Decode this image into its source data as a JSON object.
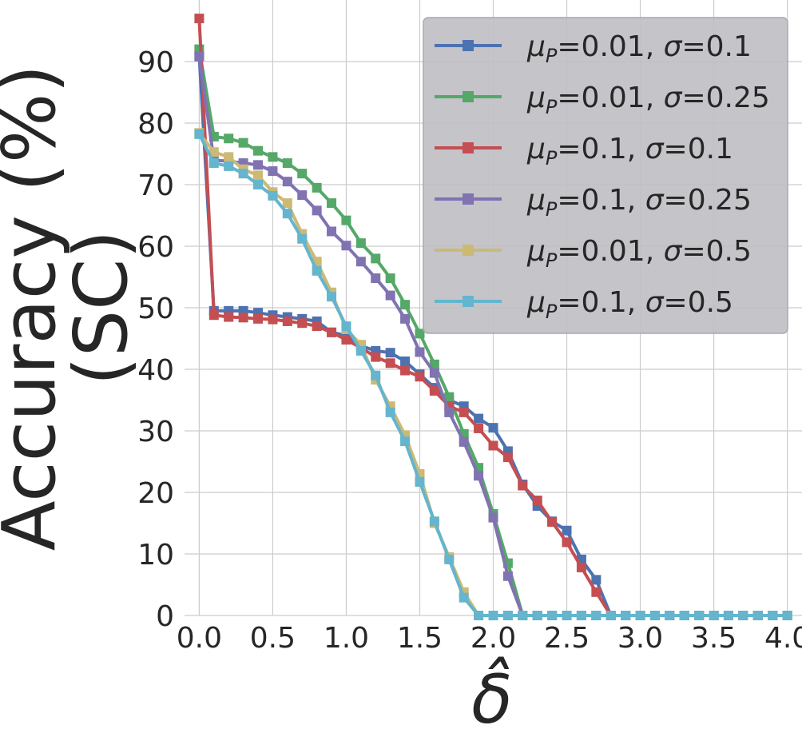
{
  "chart_data": {
    "type": "line",
    "title": "",
    "xlabel": "δ̂",
    "ylabel_lines": [
      "Accuracy (%)",
      "(SC)"
    ],
    "xlim": [
      -0.1,
      4.1
    ],
    "ylim": [
      0,
      100
    ],
    "x_ticks": [
      "0.0",
      "0.5",
      "1.0",
      "1.5",
      "2.0",
      "2.5",
      "3.0",
      "3.5",
      "4.0"
    ],
    "y_ticks": [
      "0",
      "10",
      "20",
      "30",
      "40",
      "50",
      "60",
      "70",
      "80",
      "90"
    ],
    "grid": true,
    "legend_position": "upper-right",
    "x": [
      0.0,
      0.1,
      0.2,
      0.3,
      0.4,
      0.5,
      0.6,
      0.7,
      0.8,
      0.9,
      1.0,
      1.1,
      1.2,
      1.3,
      1.4,
      1.5,
      1.6,
      1.7,
      1.8,
      1.9,
      2.0,
      2.1,
      2.2,
      2.3,
      2.4,
      2.5,
      2.6,
      2.7,
      2.8,
      2.9,
      3.0,
      3.1,
      3.2,
      3.3,
      3.4,
      3.5,
      3.6,
      3.7,
      3.8,
      3.9,
      4.0
    ],
    "series": [
      {
        "legend": {
          "mu": "=0.01, ",
          "sigma": "=0.1"
        },
        "color": "#4c72b0",
        "values": [
          91,
          49.5,
          49.5,
          49.5,
          49.2,
          48.8,
          48.5,
          48.2,
          47.8,
          46,
          45.5,
          43.8,
          43,
          42.7,
          41.3,
          39.2,
          37,
          35,
          34,
          32,
          30.5,
          26.7,
          21.3,
          17.8,
          15.3,
          13.8,
          9.1,
          5.8,
          0,
          0,
          0,
          0,
          0,
          0,
          0,
          0,
          0,
          0,
          0,
          0,
          0
        ]
      },
      {
        "legend": {
          "mu": "=0.01, ",
          "sigma": "=0.25"
        },
        "color": "#55a868",
        "values": [
          92,
          77.8,
          77.5,
          76.8,
          75.5,
          74.5,
          73.5,
          71.8,
          69.5,
          67,
          64.2,
          60.5,
          58,
          54.8,
          50.5,
          45.8,
          40.8,
          35.5,
          29.5,
          24,
          16.5,
          8.5,
          0,
          0,
          0,
          0,
          0,
          0,
          0,
          0,
          0,
          0,
          0,
          0,
          0,
          0,
          0,
          0,
          0,
          0,
          0
        ]
      },
      {
        "legend": {
          "mu": "=0.1, ",
          "sigma": "=0.1"
        },
        "color": "#c44e52",
        "values": [
          97,
          48.8,
          48.5,
          48.4,
          48.2,
          48.1,
          47.8,
          47.5,
          47,
          46,
          44.8,
          43.5,
          42,
          41,
          39.8,
          38.8,
          36.5,
          34,
          33,
          30.4,
          27.6,
          25.7,
          21.1,
          18.7,
          15.2,
          11.9,
          7.8,
          3.8,
          0,
          0,
          0,
          0,
          0,
          0,
          0,
          0,
          0,
          0,
          0,
          0,
          0
        ]
      },
      {
        "legend": {
          "mu": "=0.1, ",
          "sigma": "=0.25"
        },
        "color": "#8172b2",
        "values": [
          90.8,
          74,
          73.8,
          73.5,
          73.2,
          72.2,
          70.5,
          68.3,
          65.8,
          62.4,
          60.1,
          57.5,
          54.8,
          52,
          48.2,
          42.8,
          39.4,
          33,
          28.2,
          22.7,
          15.9,
          6.4,
          0,
          0,
          0,
          0,
          0,
          0,
          0,
          0,
          0,
          0,
          0,
          0,
          0,
          0,
          0,
          0,
          0,
          0,
          0
        ]
      },
      {
        "legend": {
          "mu": "=0.01, ",
          "sigma": "=0.5"
        },
        "color": "#ccb974",
        "values": [
          78.4,
          75.3,
          74.5,
          72.5,
          71.5,
          68.8,
          67,
          62,
          57.5,
          52.5,
          46.5,
          44,
          38.3,
          34,
          29.3,
          23,
          15,
          9.5,
          3.8,
          0,
          0,
          0,
          0,
          0,
          0,
          0,
          0,
          0,
          0,
          0,
          0,
          0,
          0,
          0,
          0,
          0,
          0,
          0,
          0,
          0,
          0
        ]
      },
      {
        "legend": {
          "mu": "=0.1, ",
          "sigma": "=0.5"
        },
        "color": "#64b5cd",
        "values": [
          78.2,
          73.5,
          73,
          71.8,
          70,
          68.2,
          65.3,
          61.2,
          56,
          51.8,
          47,
          43,
          39,
          33,
          28.3,
          21.7,
          15.3,
          9.1,
          2.9,
          0,
          0,
          0,
          0,
          0,
          0,
          0,
          0,
          0,
          0,
          0,
          0,
          0,
          0,
          0,
          0,
          0,
          0,
          0,
          0,
          0,
          0
        ]
      }
    ],
    "legend_mu_symbol": "μ",
    "legend_mu_sub": "P",
    "legend_sigma_symbol": "σ"
  }
}
